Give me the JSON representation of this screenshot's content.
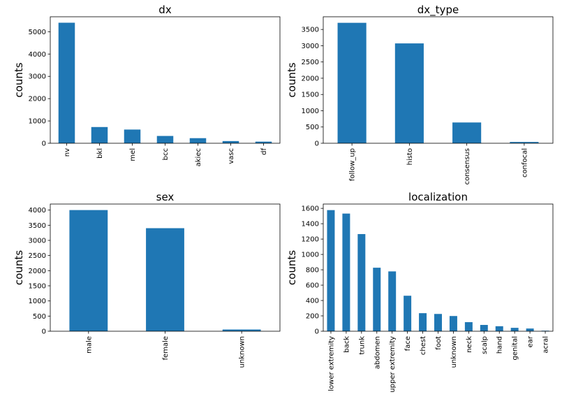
{
  "chart_data": [
    {
      "type": "bar",
      "title": "dx",
      "xlabel": "",
      "ylabel": "counts",
      "categories": [
        "nv",
        "bkl",
        "mel",
        "bcc",
        "akiec",
        "vasc",
        "df"
      ],
      "values": [
        5403,
        727,
        614,
        327,
        228,
        98,
        73
      ],
      "ylim": [
        0,
        5670
      ],
      "yticks": [
        0,
        1000,
        2000,
        3000,
        4000,
        5000
      ],
      "color": "#1f77b4",
      "grid": false,
      "legend": false
    },
    {
      "type": "bar",
      "title": "dx_type",
      "xlabel": "",
      "ylabel": "counts",
      "categories": [
        "follow_up",
        "histo",
        "consensus",
        "confocal"
      ],
      "values": [
        3704,
        3071,
        639,
        40
      ],
      "ylim": [
        0,
        3890
      ],
      "yticks": [
        0,
        500,
        1000,
        1500,
        2000,
        2500,
        3000,
        3500
      ],
      "color": "#1f77b4",
      "grid": false,
      "legend": false
    },
    {
      "type": "bar",
      "title": "sex",
      "xlabel": "",
      "ylabel": "counts",
      "categories": [
        "male",
        "female",
        "unknown"
      ],
      "values": [
        4001,
        3403,
        57
      ],
      "ylim": [
        0,
        4200
      ],
      "yticks": [
        0,
        500,
        1000,
        1500,
        2000,
        2500,
        3000,
        3500,
        4000
      ],
      "color": "#1f77b4",
      "grid": false,
      "legend": false
    },
    {
      "type": "bar",
      "title": "localization",
      "xlabel": "",
      "ylabel": "counts",
      "categories": [
        "lower extremity",
        "back",
        "trunk",
        "abdomen",
        "upper extremity",
        "face",
        "chest",
        "foot",
        "unknown",
        "neck",
        "scalp",
        "hand",
        "genital",
        "ear",
        "acral"
      ],
      "values": [
        1577,
        1532,
        1265,
        827,
        779,
        462,
        235,
        225,
        198,
        118,
        82,
        65,
        44,
        35,
        7
      ],
      "ylim": [
        0,
        1656
      ],
      "yticks": [
        0,
        200,
        400,
        600,
        800,
        1000,
        1200,
        1400,
        1600
      ],
      "color": "#1f77b4",
      "grid": false,
      "legend": false
    }
  ]
}
